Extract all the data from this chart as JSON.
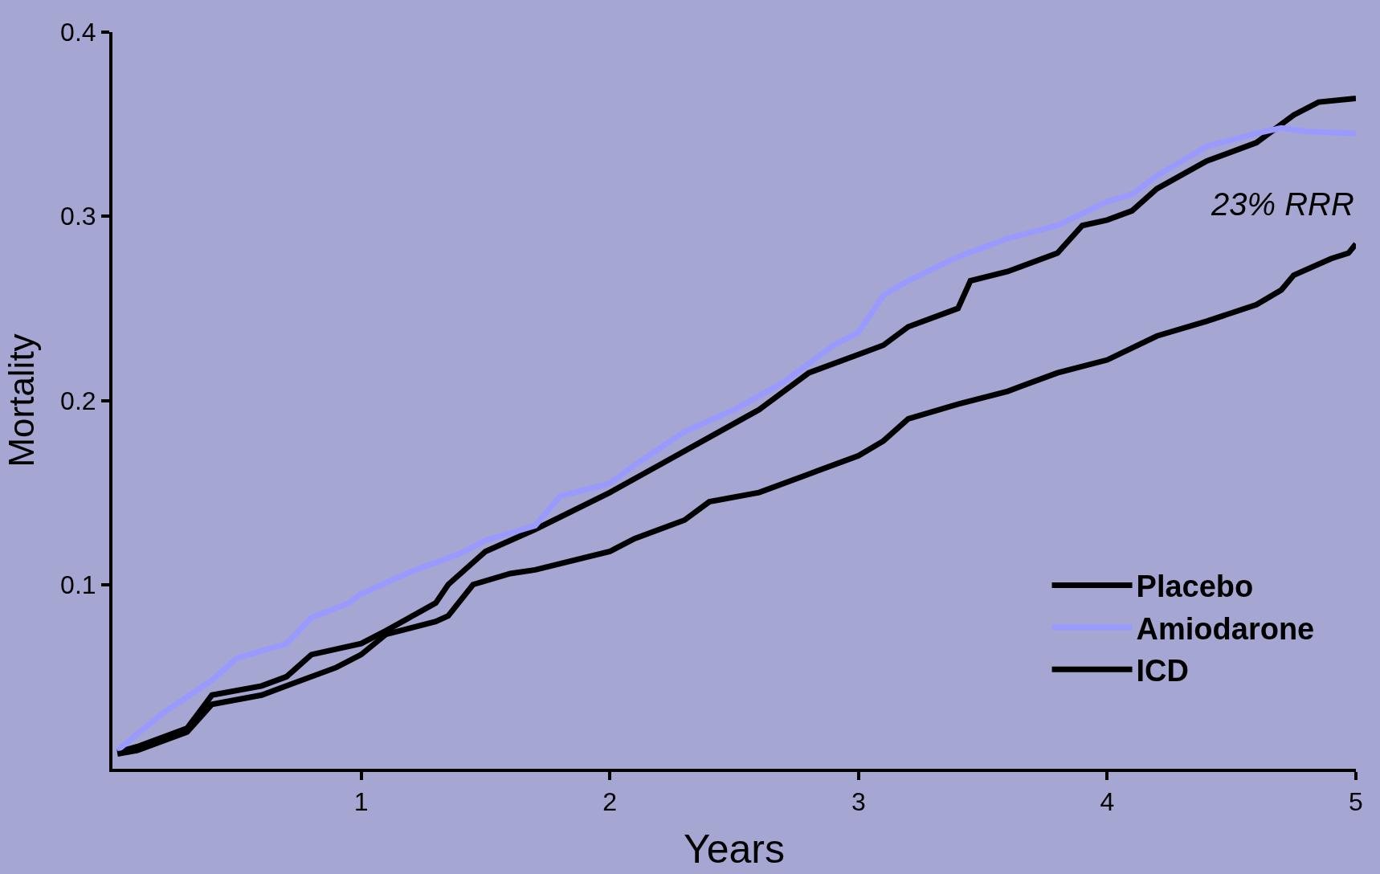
{
  "chart_data": {
    "type": "line",
    "xlabel": "Years",
    "ylabel": "Mortality",
    "xlim": [
      0,
      5
    ],
    "ylim": [
      0,
      0.4
    ],
    "xticks": [
      1,
      2,
      3,
      4,
      5
    ],
    "yticks": [
      0.1,
      0.2,
      0.3,
      0.4
    ],
    "grid": false,
    "legend": "bottom right",
    "marker": "none",
    "line_style": "solid",
    "annotations": [
      "23% RRR"
    ],
    "series": [
      {
        "name": "Placebo",
        "color": "#000000",
        "x": [
          0.02,
          0.1,
          0.3,
          0.4,
          0.6,
          0.7,
          0.8,
          1.0,
          1.1,
          1.3,
          1.35,
          1.5,
          1.7,
          2.0,
          2.2,
          2.4,
          2.6,
          2.8,
          3.0,
          3.1,
          3.2,
          3.4,
          3.45,
          3.6,
          3.8,
          3.9,
          4.0,
          4.1,
          4.2,
          4.4,
          4.6,
          4.75,
          4.85,
          5.0
        ],
        "values": [
          0.009,
          0.012,
          0.022,
          0.04,
          0.045,
          0.05,
          0.062,
          0.068,
          0.075,
          0.09,
          0.1,
          0.118,
          0.13,
          0.15,
          0.165,
          0.18,
          0.195,
          0.215,
          0.225,
          0.23,
          0.24,
          0.25,
          0.265,
          0.27,
          0.28,
          0.295,
          0.298,
          0.303,
          0.315,
          0.33,
          0.34,
          0.355,
          0.362,
          0.364
        ]
      },
      {
        "name": "Amiodarone",
        "color": "#9999ff",
        "x": [
          0.02,
          0.2,
          0.4,
          0.5,
          0.7,
          0.8,
          0.95,
          1.0,
          1.2,
          1.4,
          1.5,
          1.7,
          1.8,
          2.0,
          2.1,
          2.3,
          2.5,
          2.7,
          2.9,
          3.0,
          3.1,
          3.2,
          3.4,
          3.6,
          3.8,
          4.0,
          4.1,
          4.2,
          4.4,
          4.6,
          4.7,
          4.8,
          5.0
        ],
        "values": [
          0.01,
          0.03,
          0.048,
          0.06,
          0.068,
          0.082,
          0.09,
          0.095,
          0.107,
          0.117,
          0.124,
          0.132,
          0.148,
          0.155,
          0.165,
          0.183,
          0.195,
          0.21,
          0.23,
          0.237,
          0.257,
          0.265,
          0.278,
          0.288,
          0.295,
          0.308,
          0.312,
          0.322,
          0.338,
          0.345,
          0.348,
          0.346,
          0.345
        ]
      },
      {
        "name": "ICD",
        "color": "#000000",
        "x": [
          0.02,
          0.1,
          0.3,
          0.4,
          0.6,
          0.7,
          0.9,
          1.0,
          1.1,
          1.3,
          1.35,
          1.45,
          1.6,
          1.7,
          2.0,
          2.1,
          2.3,
          2.4,
          2.6,
          2.8,
          3.0,
          3.1,
          3.2,
          3.4,
          3.6,
          3.8,
          4.0,
          4.2,
          4.4,
          4.6,
          4.7,
          4.75,
          4.9,
          4.97,
          5.0
        ],
        "values": [
          0.008,
          0.01,
          0.02,
          0.035,
          0.04,
          0.045,
          0.055,
          0.062,
          0.073,
          0.08,
          0.083,
          0.1,
          0.106,
          0.108,
          0.118,
          0.125,
          0.135,
          0.145,
          0.15,
          0.16,
          0.17,
          0.178,
          0.19,
          0.198,
          0.205,
          0.215,
          0.222,
          0.235,
          0.243,
          0.252,
          0.26,
          0.268,
          0.277,
          0.28,
          0.285
        ]
      }
    ]
  }
}
